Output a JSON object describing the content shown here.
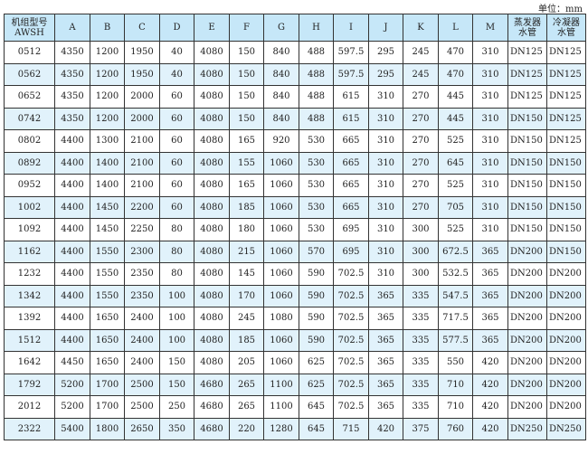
{
  "unit_label": "单位：mm",
  "table": {
    "headers": [
      {
        "line1": "机组型号",
        "line2": "AWSH"
      },
      {
        "line1": "A"
      },
      {
        "line1": "B"
      },
      {
        "line1": "C"
      },
      {
        "line1": "D"
      },
      {
        "line1": "E"
      },
      {
        "line1": "F"
      },
      {
        "line1": "G"
      },
      {
        "line1": "H"
      },
      {
        "line1": "I"
      },
      {
        "line1": "J"
      },
      {
        "line1": "K"
      },
      {
        "line1": "L"
      },
      {
        "line1": "M"
      },
      {
        "line1": "蒸发器",
        "line2": "水管"
      },
      {
        "line1": "冷凝器",
        "line2": "水管"
      }
    ],
    "rows": [
      [
        "0512",
        "4350",
        "1200",
        "1950",
        "40",
        "4080",
        "150",
        "840",
        "488",
        "597.5",
        "295",
        "245",
        "470",
        "310",
        "DN125",
        "DN125"
      ],
      [
        "0562",
        "4350",
        "1200",
        "1950",
        "40",
        "4080",
        "150",
        "840",
        "488",
        "597.5",
        "295",
        "245",
        "470",
        "310",
        "DN125",
        "DN125"
      ],
      [
        "0652",
        "4350",
        "1200",
        "2000",
        "60",
        "4080",
        "150",
        "840",
        "488",
        "615",
        "310",
        "270",
        "445",
        "310",
        "DN125",
        "DN125"
      ],
      [
        "0742",
        "4350",
        "1200",
        "2000",
        "60",
        "4080",
        "150",
        "840",
        "488",
        "615",
        "310",
        "270",
        "445",
        "310",
        "DN150",
        "DN125"
      ],
      [
        "0802",
        "4400",
        "1300",
        "2100",
        "60",
        "4080",
        "165",
        "920",
        "530",
        "665",
        "310",
        "270",
        "525",
        "310",
        "DN150",
        "DN125"
      ],
      [
        "0892",
        "4400",
        "1400",
        "2100",
        "60",
        "4080",
        "155",
        "1060",
        "530",
        "665",
        "310",
        "270",
        "645",
        "310",
        "DN150",
        "DN150"
      ],
      [
        "0952",
        "4400",
        "1400",
        "2100",
        "60",
        "4080",
        "165",
        "1060",
        "530",
        "665",
        "310",
        "270",
        "525",
        "310",
        "DN150",
        "DN150"
      ],
      [
        "1002",
        "4400",
        "1450",
        "2200",
        "60",
        "4080",
        "185",
        "1060",
        "530",
        "665",
        "310",
        "270",
        "705",
        "310",
        "DN150",
        "DN150"
      ],
      [
        "1092",
        "4400",
        "1450",
        "2250",
        "80",
        "4080",
        "180",
        "1060",
        "530",
        "695",
        "310",
        "300",
        "525",
        "310",
        "DN150",
        "DN150"
      ],
      [
        "1162",
        "4400",
        "1550",
        "2300",
        "80",
        "4080",
        "215",
        "1060",
        "570",
        "695",
        "310",
        "300",
        "672.5",
        "365",
        "DN200",
        "DN150"
      ],
      [
        "1232",
        "4400",
        "1550",
        "2350",
        "80",
        "4080",
        "145",
        "1060",
        "590",
        "702.5",
        "310",
        "300",
        "532.5",
        "365",
        "DN200",
        "DN200"
      ],
      [
        "1342",
        "4400",
        "1550",
        "2350",
        "100",
        "4080",
        "170",
        "1060",
        "590",
        "702.5",
        "365",
        "335",
        "547.5",
        "365",
        "DN200",
        "DN200"
      ],
      [
        "1392",
        "4400",
        "1650",
        "2400",
        "100",
        "4080",
        "245",
        "1080",
        "590",
        "702.5",
        "365",
        "335",
        "717.5",
        "365",
        "DN200",
        "DN200"
      ],
      [
        "1512",
        "4400",
        "1650",
        "2400",
        "100",
        "4080",
        "185",
        "1060",
        "590",
        "702.5",
        "365",
        "335",
        "577.5",
        "365",
        "DN200",
        "DN200"
      ],
      [
        "1642",
        "4450",
        "1650",
        "2400",
        "150",
        "4080",
        "205",
        "1060",
        "625",
        "702.5",
        "365",
        "335",
        "550",
        "420",
        "DN200",
        "DN200"
      ],
      [
        "1792",
        "5200",
        "1700",
        "2500",
        "150",
        "4680",
        "265",
        "1100",
        "625",
        "702.5",
        "365",
        "335",
        "710",
        "420",
        "DN200",
        "DN200"
      ],
      [
        "2012",
        "5200",
        "1700",
        "2500",
        "250",
        "4680",
        "265",
        "1100",
        "645",
        "702.5",
        "365",
        "335",
        "710",
        "420",
        "DN200",
        "DN200"
      ],
      [
        "2322",
        "5400",
        "1800",
        "2650",
        "350",
        "4680",
        "220",
        "1280",
        "645",
        "715",
        "420",
        "375",
        "760",
        "420",
        "DN250",
        "DN250"
      ]
    ]
  }
}
